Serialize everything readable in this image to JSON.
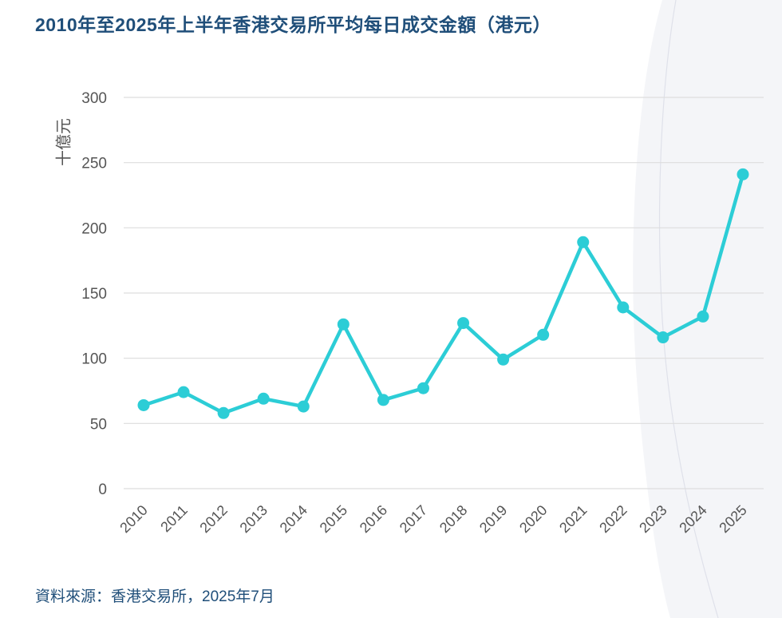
{
  "title": "2010年至2025年上半年香港交易所平均每日成交金額（港元）",
  "source": "資料來源：香港交易所，2025年7月",
  "colors": {
    "line": "#2ccdd6",
    "title": "#1f4e79",
    "grid": "#dddddd",
    "background_panel": "#f4f5f8"
  },
  "chart_data": {
    "type": "line",
    "title": "2010年至2025年上半年香港交易所平均每日成交金額（港元）",
    "ylabel": "十億元",
    "xlabel": "",
    "ylim": [
      0,
      300
    ],
    "yticks": [
      "0",
      "50",
      "100",
      "150",
      "200",
      "250",
      "300"
    ],
    "grid": true,
    "categories": [
      "2010",
      "2011",
      "2012",
      "2013",
      "2014",
      "2015",
      "2016",
      "2017",
      "2018",
      "2019",
      "2020",
      "2021",
      "2022",
      "2023",
      "2024",
      "2025"
    ],
    "values": [
      64,
      74,
      58,
      69,
      63,
      126,
      68,
      77,
      127,
      99,
      118,
      189,
      139,
      116,
      132,
      241
    ]
  }
}
